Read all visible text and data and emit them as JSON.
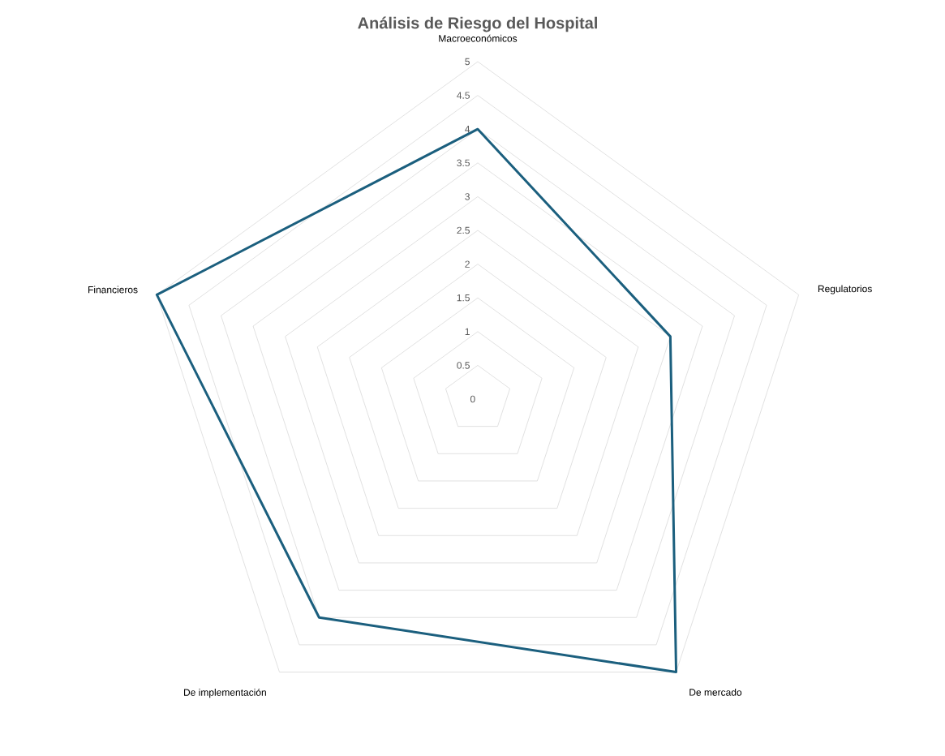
{
  "chart_data": {
    "type": "radar",
    "title": "Análisis de Riesgo del Hospital",
    "categories": [
      "Macroeconómicos",
      "Regulatorios",
      "De mercado",
      "De implementación",
      "Financieros"
    ],
    "series": [
      {
        "color": "#1b5f7e",
        "values": [
          4,
          3,
          5,
          4,
          5
        ]
      }
    ],
    "ylim": [
      0,
      5
    ],
    "yticks": [
      0,
      0.5,
      1,
      1.5,
      2,
      2.5,
      3,
      3.5,
      4,
      4.5,
      5
    ],
    "grid": true,
    "marker": "none",
    "line_style": "solid"
  }
}
